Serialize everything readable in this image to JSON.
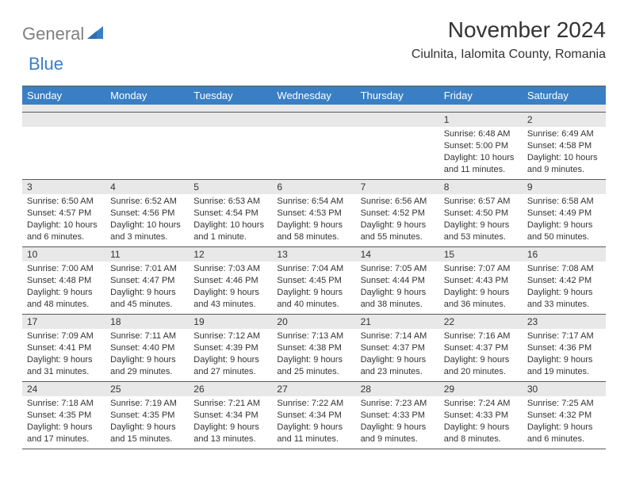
{
  "logo": {
    "general": "General",
    "blue": "Blue"
  },
  "title": "November 2024",
  "location": "Ciulnita, Ialomita County, Romania",
  "colors": {
    "headerBg": "#3a7fc4",
    "headerText": "#ffffff",
    "numBarBg": "#e8e8e8",
    "border": "#5a5a5a",
    "text": "#333333",
    "logoGray": "#808080",
    "logoBlue": "#3a7fc4"
  },
  "dayNames": [
    "Sunday",
    "Monday",
    "Tuesday",
    "Wednesday",
    "Thursday",
    "Friday",
    "Saturday"
  ],
  "weeks": [
    [
      {
        "num": "",
        "sunrise": "",
        "sunset": "",
        "daylight": ""
      },
      {
        "num": "",
        "sunrise": "",
        "sunset": "",
        "daylight": ""
      },
      {
        "num": "",
        "sunrise": "",
        "sunset": "",
        "daylight": ""
      },
      {
        "num": "",
        "sunrise": "",
        "sunset": "",
        "daylight": ""
      },
      {
        "num": "",
        "sunrise": "",
        "sunset": "",
        "daylight": ""
      },
      {
        "num": "1",
        "sunrise": "Sunrise: 6:48 AM",
        "sunset": "Sunset: 5:00 PM",
        "daylight": "Daylight: 10 hours and 11 minutes."
      },
      {
        "num": "2",
        "sunrise": "Sunrise: 6:49 AM",
        "sunset": "Sunset: 4:58 PM",
        "daylight": "Daylight: 10 hours and 9 minutes."
      }
    ],
    [
      {
        "num": "3",
        "sunrise": "Sunrise: 6:50 AM",
        "sunset": "Sunset: 4:57 PM",
        "daylight": "Daylight: 10 hours and 6 minutes."
      },
      {
        "num": "4",
        "sunrise": "Sunrise: 6:52 AM",
        "sunset": "Sunset: 4:56 PM",
        "daylight": "Daylight: 10 hours and 3 minutes."
      },
      {
        "num": "5",
        "sunrise": "Sunrise: 6:53 AM",
        "sunset": "Sunset: 4:54 PM",
        "daylight": "Daylight: 10 hours and 1 minute."
      },
      {
        "num": "6",
        "sunrise": "Sunrise: 6:54 AM",
        "sunset": "Sunset: 4:53 PM",
        "daylight": "Daylight: 9 hours and 58 minutes."
      },
      {
        "num": "7",
        "sunrise": "Sunrise: 6:56 AM",
        "sunset": "Sunset: 4:52 PM",
        "daylight": "Daylight: 9 hours and 55 minutes."
      },
      {
        "num": "8",
        "sunrise": "Sunrise: 6:57 AM",
        "sunset": "Sunset: 4:50 PM",
        "daylight": "Daylight: 9 hours and 53 minutes."
      },
      {
        "num": "9",
        "sunrise": "Sunrise: 6:58 AM",
        "sunset": "Sunset: 4:49 PM",
        "daylight": "Daylight: 9 hours and 50 minutes."
      }
    ],
    [
      {
        "num": "10",
        "sunrise": "Sunrise: 7:00 AM",
        "sunset": "Sunset: 4:48 PM",
        "daylight": "Daylight: 9 hours and 48 minutes."
      },
      {
        "num": "11",
        "sunrise": "Sunrise: 7:01 AM",
        "sunset": "Sunset: 4:47 PM",
        "daylight": "Daylight: 9 hours and 45 minutes."
      },
      {
        "num": "12",
        "sunrise": "Sunrise: 7:03 AM",
        "sunset": "Sunset: 4:46 PM",
        "daylight": "Daylight: 9 hours and 43 minutes."
      },
      {
        "num": "13",
        "sunrise": "Sunrise: 7:04 AM",
        "sunset": "Sunset: 4:45 PM",
        "daylight": "Daylight: 9 hours and 40 minutes."
      },
      {
        "num": "14",
        "sunrise": "Sunrise: 7:05 AM",
        "sunset": "Sunset: 4:44 PM",
        "daylight": "Daylight: 9 hours and 38 minutes."
      },
      {
        "num": "15",
        "sunrise": "Sunrise: 7:07 AM",
        "sunset": "Sunset: 4:43 PM",
        "daylight": "Daylight: 9 hours and 36 minutes."
      },
      {
        "num": "16",
        "sunrise": "Sunrise: 7:08 AM",
        "sunset": "Sunset: 4:42 PM",
        "daylight": "Daylight: 9 hours and 33 minutes."
      }
    ],
    [
      {
        "num": "17",
        "sunrise": "Sunrise: 7:09 AM",
        "sunset": "Sunset: 4:41 PM",
        "daylight": "Daylight: 9 hours and 31 minutes."
      },
      {
        "num": "18",
        "sunrise": "Sunrise: 7:11 AM",
        "sunset": "Sunset: 4:40 PM",
        "daylight": "Daylight: 9 hours and 29 minutes."
      },
      {
        "num": "19",
        "sunrise": "Sunrise: 7:12 AM",
        "sunset": "Sunset: 4:39 PM",
        "daylight": "Daylight: 9 hours and 27 minutes."
      },
      {
        "num": "20",
        "sunrise": "Sunrise: 7:13 AM",
        "sunset": "Sunset: 4:38 PM",
        "daylight": "Daylight: 9 hours and 25 minutes."
      },
      {
        "num": "21",
        "sunrise": "Sunrise: 7:14 AM",
        "sunset": "Sunset: 4:37 PM",
        "daylight": "Daylight: 9 hours and 23 minutes."
      },
      {
        "num": "22",
        "sunrise": "Sunrise: 7:16 AM",
        "sunset": "Sunset: 4:37 PM",
        "daylight": "Daylight: 9 hours and 20 minutes."
      },
      {
        "num": "23",
        "sunrise": "Sunrise: 7:17 AM",
        "sunset": "Sunset: 4:36 PM",
        "daylight": "Daylight: 9 hours and 19 minutes."
      }
    ],
    [
      {
        "num": "24",
        "sunrise": "Sunrise: 7:18 AM",
        "sunset": "Sunset: 4:35 PM",
        "daylight": "Daylight: 9 hours and 17 minutes."
      },
      {
        "num": "25",
        "sunrise": "Sunrise: 7:19 AM",
        "sunset": "Sunset: 4:35 PM",
        "daylight": "Daylight: 9 hours and 15 minutes."
      },
      {
        "num": "26",
        "sunrise": "Sunrise: 7:21 AM",
        "sunset": "Sunset: 4:34 PM",
        "daylight": "Daylight: 9 hours and 13 minutes."
      },
      {
        "num": "27",
        "sunrise": "Sunrise: 7:22 AM",
        "sunset": "Sunset: 4:34 PM",
        "daylight": "Daylight: 9 hours and 11 minutes."
      },
      {
        "num": "28",
        "sunrise": "Sunrise: 7:23 AM",
        "sunset": "Sunset: 4:33 PM",
        "daylight": "Daylight: 9 hours and 9 minutes."
      },
      {
        "num": "29",
        "sunrise": "Sunrise: 7:24 AM",
        "sunset": "Sunset: 4:33 PM",
        "daylight": "Daylight: 9 hours and 8 minutes."
      },
      {
        "num": "30",
        "sunrise": "Sunrise: 7:25 AM",
        "sunset": "Sunset: 4:32 PM",
        "daylight": "Daylight: 9 hours and 6 minutes."
      }
    ]
  ]
}
